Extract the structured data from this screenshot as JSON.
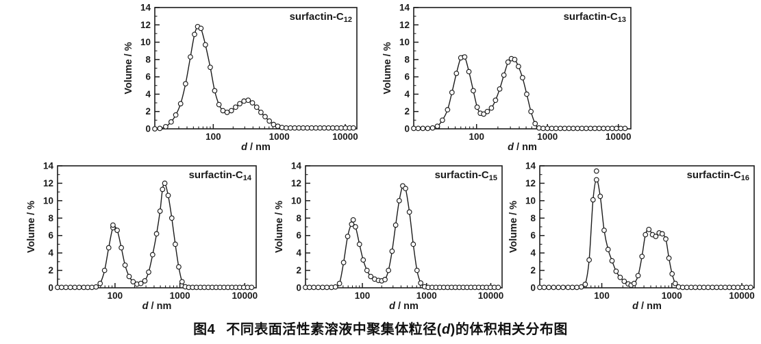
{
  "figure": {
    "caption": {
      "label": "图4",
      "text_before_d": "不同表面活性素溶液中聚集体粒径(",
      "d_symbol": "d",
      "text_after_d": ")的体积相关分布图"
    },
    "colors": {
      "ink": "#1a1a1a",
      "background": "#ffffff",
      "marker_fill": "#ffffff"
    }
  },
  "chart_data": [
    {
      "type": "line",
      "title": {
        "base": "surfactin-C",
        "sub": "12"
      },
      "xlabel": {
        "italic": "d",
        "unit": " / nm"
      },
      "ylabel": "Volume / %",
      "xscale": "log",
      "xlim": [
        13,
        15000
      ],
      "ylim": [
        0,
        14
      ],
      "x_major_ticks": [
        100,
        1000,
        10000
      ],
      "x_tick_labels": [
        "100",
        "1000",
        "10000"
      ],
      "y_major_ticks": [
        0,
        2,
        4,
        6,
        8,
        10,
        12,
        14
      ],
      "y_minor_ticks": [
        1,
        3,
        5,
        7,
        9,
        11,
        13
      ],
      "grid": false,
      "marker": "open-circle",
      "points": [
        [
          13,
          0
        ],
        [
          15.5,
          0.05
        ],
        [
          19,
          0.25
        ],
        [
          23,
          0.8
        ],
        [
          27,
          1.6
        ],
        [
          32,
          2.9
        ],
        [
          38,
          5.2
        ],
        [
          45,
          8.3
        ],
        [
          52,
          10.9
        ],
        [
          58,
          11.8
        ],
        [
          65,
          11.6
        ],
        [
          76,
          9.7
        ],
        [
          90,
          7.1
        ],
        [
          105,
          4.4
        ],
        [
          122,
          2.8
        ],
        [
          140,
          2.1
        ],
        [
          162,
          1.9
        ],
        [
          188,
          2.1
        ],
        [
          218,
          2.5
        ],
        [
          252,
          2.9
        ],
        [
          292,
          3.2
        ],
        [
          338,
          3.3
        ],
        [
          392,
          3.0
        ],
        [
          455,
          2.5
        ],
        [
          527,
          1.9
        ],
        [
          610,
          1.4
        ],
        [
          707,
          0.9
        ],
        [
          820,
          0.5
        ],
        [
          950,
          0.3
        ],
        [
          1100,
          0.15
        ],
        [
          1275,
          0.1
        ],
        [
          1478,
          0.1
        ],
        [
          1713,
          0.1
        ],
        [
          1985,
          0.1
        ],
        [
          2300,
          0.1
        ],
        [
          2666,
          0.1
        ],
        [
          3090,
          0.1
        ],
        [
          3581,
          0.1
        ],
        [
          4150,
          0.1
        ],
        [
          4810,
          0.1
        ],
        [
          5574,
          0.1
        ],
        [
          6460,
          0.1
        ],
        [
          7487,
          0.1
        ],
        [
          8677,
          0.1
        ],
        [
          10056,
          0.1
        ],
        [
          11654,
          0.1
        ],
        [
          13300,
          0.1
        ]
      ],
      "outliers": []
    },
    {
      "type": "line",
      "title": {
        "base": "surfactin-C",
        "sub": "13"
      },
      "xlabel": {
        "italic": "d",
        "unit": " / nm"
      },
      "ylabel": "Volume / %",
      "xscale": "log",
      "xlim": [
        13,
        15000
      ],
      "ylim": [
        0,
        14
      ],
      "x_major_ticks": [
        100,
        1000,
        10000
      ],
      "x_tick_labels": [
        "100",
        "1000",
        "10000"
      ],
      "y_major_ticks": [
        0,
        2,
        4,
        6,
        8,
        10,
        12,
        14
      ],
      "y_minor_ticks": [
        1,
        3,
        5,
        7,
        9,
        11,
        13
      ],
      "grid": false,
      "marker": "open-circle",
      "points": [
        [
          13,
          0.05
        ],
        [
          15,
          0.05
        ],
        [
          17.5,
          0.05
        ],
        [
          20.5,
          0.05
        ],
        [
          24,
          0.1
        ],
        [
          28,
          0.3
        ],
        [
          33,
          1.0
        ],
        [
          39,
          2.2
        ],
        [
          45,
          4.2
        ],
        [
          52,
          6.4
        ],
        [
          60,
          8.2
        ],
        [
          68,
          8.3
        ],
        [
          78,
          6.6
        ],
        [
          90,
          4.4
        ],
        [
          102,
          2.5
        ],
        [
          113,
          1.8
        ],
        [
          126,
          1.7
        ],
        [
          142,
          2.0
        ],
        [
          162,
          2.4
        ],
        [
          185,
          3.3
        ],
        [
          212,
          4.6
        ],
        [
          243,
          6.2
        ],
        [
          278,
          7.7
        ],
        [
          310,
          8.1
        ],
        [
          345,
          8.0
        ],
        [
          390,
          7.2
        ],
        [
          445,
          5.9
        ],
        [
          510,
          4.0
        ],
        [
          585,
          2.0
        ],
        [
          670,
          0.6
        ],
        [
          760,
          0.1
        ],
        [
          870,
          0.05
        ],
        [
          1000,
          0.05
        ],
        [
          1150,
          0.05
        ],
        [
          1320,
          0.05
        ],
        [
          1520,
          0.05
        ],
        [
          1750,
          0.05
        ],
        [
          2010,
          0.05
        ],
        [
          2310,
          0.05
        ],
        [
          2660,
          0.05
        ],
        [
          3060,
          0.05
        ],
        [
          3520,
          0.05
        ],
        [
          4050,
          0.05
        ],
        [
          4660,
          0.05
        ],
        [
          5360,
          0.05
        ],
        [
          6170,
          0.05
        ],
        [
          7100,
          0.05
        ],
        [
          8170,
          0.05
        ],
        [
          9400,
          0.05
        ],
        [
          10800,
          0.05
        ],
        [
          12400,
          0.05
        ]
      ],
      "outliers": []
    },
    {
      "type": "line",
      "title": {
        "base": "surfactin-C",
        "sub": "14"
      },
      "xlabel": {
        "italic": "d",
        "unit": " / nm"
      },
      "ylabel": "Volume / %",
      "xscale": "log",
      "xlim": [
        13,
        15000
      ],
      "ylim": [
        0,
        14
      ],
      "x_major_ticks": [
        100,
        1000,
        10000
      ],
      "x_tick_labels": [
        "100",
        "1000",
        "10000"
      ],
      "y_major_ticks": [
        0,
        2,
        4,
        6,
        8,
        10,
        12,
        14
      ],
      "y_minor_ticks": [
        1,
        3,
        5,
        7,
        9,
        11,
        13
      ],
      "grid": false,
      "marker": "open-circle",
      "points": [
        [
          13,
          0.05
        ],
        [
          15,
          0.05
        ],
        [
          17.5,
          0.05
        ],
        [
          20.5,
          0.05
        ],
        [
          24,
          0.05
        ],
        [
          28,
          0.05
        ],
        [
          33,
          0.05
        ],
        [
          38,
          0.05
        ],
        [
          44,
          0.05
        ],
        [
          51,
          0.1
        ],
        [
          59,
          0.5
        ],
        [
          69,
          2.0
        ],
        [
          80,
          4.6
        ],
        [
          93,
          6.9
        ],
        [
          108,
          6.6
        ],
        [
          125,
          4.6
        ],
        [
          143,
          2.6
        ],
        [
          165,
          1.3
        ],
        [
          190,
          0.7
        ],
        [
          218,
          0.42
        ],
        [
          250,
          0.5
        ],
        [
          288,
          0.8
        ],
        [
          330,
          1.8
        ],
        [
          380,
          3.8
        ],
        [
          437,
          6.2
        ],
        [
          495,
          8.8
        ],
        [
          540,
          11.3
        ],
        [
          585,
          12.0
        ],
        [
          660,
          10.6
        ],
        [
          750,
          8.0
        ],
        [
          850,
          5.0
        ],
        [
          960,
          2.4
        ],
        [
          1080,
          0.7
        ],
        [
          1210,
          0.12
        ],
        [
          1370,
          0.05
        ],
        [
          1570,
          0.05
        ],
        [
          1800,
          0.05
        ],
        [
          2070,
          0.05
        ],
        [
          2380,
          0.05
        ],
        [
          2740,
          0.05
        ],
        [
          3150,
          0.05
        ],
        [
          3620,
          0.05
        ],
        [
          4160,
          0.05
        ],
        [
          4790,
          0.05
        ],
        [
          5510,
          0.05
        ],
        [
          6340,
          0.05
        ],
        [
          7290,
          0.05
        ],
        [
          8380,
          0.05
        ],
        [
          9640,
          0.05
        ],
        [
          11090,
          0.05
        ],
        [
          12750,
          0.05
        ]
      ],
      "outliers": [
        [
          93,
          7.2
        ]
      ]
    },
    {
      "type": "line",
      "title": {
        "base": "surfactin-C",
        "sub": "15"
      },
      "xlabel": {
        "italic": "d",
        "unit": " / nm"
      },
      "ylabel": "Volume / %",
      "xscale": "log",
      "xlim": [
        13,
        15000
      ],
      "ylim": [
        0,
        14
      ],
      "x_major_ticks": [
        100,
        1000,
        10000
      ],
      "x_tick_labels": [
        "100",
        "1000",
        "10000"
      ],
      "y_major_ticks": [
        0,
        2,
        4,
        6,
        8,
        10,
        12,
        14
      ],
      "y_minor_ticks": [
        1,
        3,
        5,
        7,
        9,
        11,
        13
      ],
      "grid": false,
      "marker": "open-circle",
      "points": [
        [
          13,
          0.05
        ],
        [
          15,
          0.05
        ],
        [
          17.5,
          0.05
        ],
        [
          20.5,
          0.05
        ],
        [
          24,
          0.05
        ],
        [
          28,
          0.05
        ],
        [
          33,
          0.05
        ],
        [
          38,
          0.1
        ],
        [
          44,
          0.5
        ],
        [
          51,
          2.9
        ],
        [
          59,
          5.9
        ],
        [
          68,
          7.3
        ],
        [
          78,
          7.0
        ],
        [
          90,
          5.0
        ],
        [
          103,
          3.2
        ],
        [
          118,
          2.0
        ],
        [
          135,
          1.3
        ],
        [
          155,
          1.0
        ],
        [
          178,
          0.85
        ],
        [
          200,
          0.8
        ],
        [
          225,
          0.95
        ],
        [
          255,
          2.0
        ],
        [
          290,
          4.2
        ],
        [
          330,
          7.2
        ],
        [
          375,
          10.0
        ],
        [
          425,
          11.7
        ],
        [
          470,
          11.4
        ],
        [
          540,
          8.7
        ],
        [
          620,
          5.0
        ],
        [
          710,
          2.0
        ],
        [
          810,
          0.55
        ],
        [
          930,
          0.12
        ],
        [
          1060,
          0.05
        ],
        [
          1220,
          0.05
        ],
        [
          1400,
          0.05
        ],
        [
          1610,
          0.05
        ],
        [
          1850,
          0.05
        ],
        [
          2130,
          0.05
        ],
        [
          2450,
          0.05
        ],
        [
          2810,
          0.05
        ],
        [
          3230,
          0.05
        ],
        [
          3720,
          0.05
        ],
        [
          4270,
          0.05
        ],
        [
          4910,
          0.05
        ],
        [
          5650,
          0.05
        ],
        [
          6490,
          0.05
        ],
        [
          7470,
          0.05
        ],
        [
          8590,
          0.05
        ],
        [
          9880,
          0.05
        ],
        [
          11360,
          0.05
        ],
        [
          13060,
          0.05
        ]
      ],
      "outliers": [
        [
          72,
          7.8
        ]
      ]
    },
    {
      "type": "line",
      "title": {
        "base": "surfactin-C",
        "sub": "16"
      },
      "xlabel": {
        "italic": "d",
        "unit": " / nm"
      },
      "ylabel": "Volume / %",
      "xscale": "log",
      "xlim": [
        13,
        15000
      ],
      "ylim": [
        0,
        14
      ],
      "x_major_ticks": [
        100,
        1000,
        10000
      ],
      "x_tick_labels": [
        "100",
        "1000",
        "10000"
      ],
      "y_major_ticks": [
        0,
        2,
        4,
        6,
        8,
        10,
        12,
        14
      ],
      "y_minor_ticks": [
        1,
        3,
        5,
        7,
        9,
        11,
        13
      ],
      "grid": false,
      "marker": "open-circle",
      "points": [
        [
          13,
          0.05
        ],
        [
          15,
          0.05
        ],
        [
          17.5,
          0.05
        ],
        [
          20.5,
          0.05
        ],
        [
          24,
          0.05
        ],
        [
          28,
          0.05
        ],
        [
          33,
          0.05
        ],
        [
          38,
          0.05
        ],
        [
          44,
          0.05
        ],
        [
          51,
          0.1
        ],
        [
          58,
          0.4
        ],
        [
          66,
          3.2
        ],
        [
          75,
          10.1
        ],
        [
          84,
          12.4
        ],
        [
          95,
          10.5
        ],
        [
          108,
          6.6
        ],
        [
          123,
          4.4
        ],
        [
          140,
          3.1
        ],
        [
          160,
          1.9
        ],
        [
          183,
          1.2
        ],
        [
          209,
          0.75
        ],
        [
          238,
          0.45
        ],
        [
          262,
          0.3
        ],
        [
          290,
          0.5
        ],
        [
          330,
          1.4
        ],
        [
          375,
          3.6
        ],
        [
          420,
          6.1
        ],
        [
          470,
          6.7
        ],
        [
          530,
          6.1
        ],
        [
          590,
          5.9
        ],
        [
          660,
          6.3
        ],
        [
          730,
          6.2
        ],
        [
          820,
          5.6
        ],
        [
          910,
          3.4
        ],
        [
          1010,
          1.6
        ],
        [
          1120,
          0.5
        ],
        [
          1250,
          0.1
        ],
        [
          1430,
          0.05
        ],
        [
          1640,
          0.05
        ],
        [
          1890,
          0.05
        ],
        [
          2170,
          0.05
        ],
        [
          2500,
          0.05
        ],
        [
          2870,
          0.05
        ],
        [
          3300,
          0.05
        ],
        [
          3800,
          0.05
        ],
        [
          4370,
          0.05
        ],
        [
          5020,
          0.05
        ],
        [
          5780,
          0.05
        ],
        [
          6640,
          0.05
        ],
        [
          7640,
          0.05
        ],
        [
          8780,
          0.05
        ],
        [
          10100,
          0.05
        ],
        [
          11620,
          0.05
        ],
        [
          13360,
          0.05
        ]
      ],
      "outliers": [
        [
          84,
          13.4
        ]
      ]
    }
  ]
}
